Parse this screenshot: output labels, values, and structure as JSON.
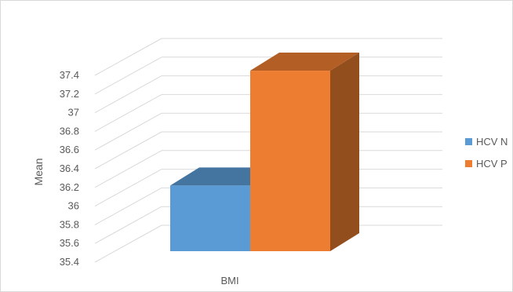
{
  "chart_data": {
    "type": "bar",
    "style": "3d-column",
    "categories": [
      "BMI"
    ],
    "series": [
      {
        "name": "HCV N",
        "values": [
          36.22
        ],
        "color": "#5B9BD5"
      },
      {
        "name": "HCV P",
        "values": [
          37.45
        ],
        "color": "#ED7D31"
      }
    ],
    "title": "",
    "xlabel": "",
    "ylabel": "Mean",
    "ylim": [
      35.4,
      37.4
    ],
    "yticks": [
      35.4,
      35.6,
      35.8,
      36,
      36.2,
      36.4,
      36.6,
      36.8,
      37,
      37.2,
      37.4
    ],
    "ytick_labels": [
      "35.4",
      "35.6",
      "35.8",
      "36",
      "36.2",
      "36.4",
      "36.6",
      "36.8",
      "37",
      "37.2",
      "37.4"
    ],
    "grid": true,
    "legend_position": "right"
  }
}
